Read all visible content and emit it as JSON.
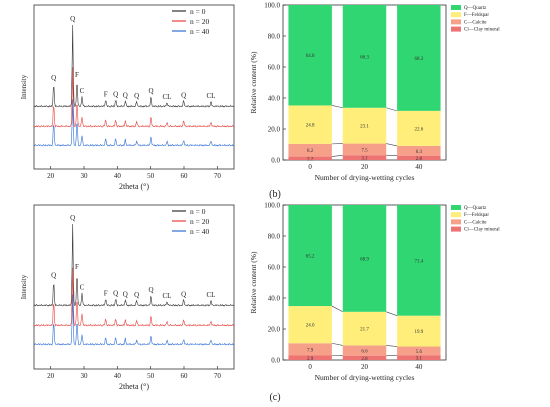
{
  "figure": {
    "panel_labels": [
      "(b)",
      "(c)"
    ]
  },
  "chart_data": [
    {
      "type": "line",
      "id": "xrd-top",
      "xlabel": "2theta (°)",
      "ylabel": "Intensity",
      "xlim": [
        15,
        75
      ],
      "xticks": [
        20,
        30,
        40,
        50,
        60,
        70
      ],
      "legend_position": "top-right",
      "series": [
        {
          "name": "n = 0",
          "color": "#333333",
          "peaks": [
            [
              20.9,
              0.28
            ],
            [
              26.6,
              1.0
            ],
            [
              27.9,
              0.32
            ],
            [
              29.4,
              0.12
            ],
            [
              36.5,
              0.08
            ],
            [
              39.5,
              0.08
            ],
            [
              42.4,
              0.07
            ],
            [
              45.8,
              0.06
            ],
            [
              50.1,
              0.12
            ],
            [
              54.9,
              0.05
            ],
            [
              59.9,
              0.07
            ],
            [
              68.1,
              0.06
            ]
          ]
        },
        {
          "name": "n = 20",
          "color": "#e8403c",
          "peaks": [
            [
              20.9,
              0.28
            ],
            [
              26.6,
              0.72
            ],
            [
              27.9,
              0.32
            ],
            [
              29.4,
              0.12
            ],
            [
              36.5,
              0.08
            ],
            [
              39.5,
              0.08
            ],
            [
              42.4,
              0.07
            ],
            [
              45.8,
              0.06
            ],
            [
              50.1,
              0.12
            ],
            [
              54.9,
              0.05
            ],
            [
              59.9,
              0.07
            ],
            [
              68.1,
              0.06
            ]
          ]
        },
        {
          "name": "n = 40",
          "color": "#2f6fd6",
          "peaks": [
            [
              20.9,
              0.28
            ],
            [
              26.6,
              0.55
            ],
            [
              27.9,
              0.32
            ],
            [
              29.4,
              0.12
            ],
            [
              36.5,
              0.08
            ],
            [
              39.5,
              0.08
            ],
            [
              42.4,
              0.07
            ],
            [
              45.8,
              0.06
            ],
            [
              50.1,
              0.12
            ],
            [
              54.9,
              0.05
            ],
            [
              59.9,
              0.07
            ],
            [
              68.1,
              0.06
            ]
          ]
        }
      ],
      "annotations": [
        {
          "text": "Q",
          "x": 20.9
        },
        {
          "text": "Q",
          "x": 26.6
        },
        {
          "text": "F",
          "x": 27.9
        },
        {
          "text": "C",
          "x": 29.4
        },
        {
          "text": "F",
          "x": 36.5
        },
        {
          "text": "Q",
          "x": 39.5
        },
        {
          "text": "Q",
          "x": 42.4
        },
        {
          "text": "Q",
          "x": 45.8
        },
        {
          "text": "Q",
          "x": 50.1
        },
        {
          "text": "CL",
          "x": 54.9
        },
        {
          "text": "Q",
          "x": 59.9
        },
        {
          "text": "CL",
          "x": 68.1
        }
      ]
    },
    {
      "type": "bar",
      "id": "comp-top",
      "xlabel": "Number of drying-wetting cycles",
      "ylabel": "Relative content (%)",
      "categories": [
        "0",
        "20",
        "40"
      ],
      "ylim": [
        0,
        100
      ],
      "yticks": [
        0,
        0.2,
        0.4,
        0.6,
        0.8,
        1
      ],
      "ytick_labels": [
        "0.0",
        "20.0",
        "40.0",
        "60.0",
        "80.0",
        "100.0"
      ],
      "stacked": true,
      "legend_position": "top-right",
      "series": [
        {
          "name": "Cl—Clay mineral",
          "color": "#ee7373",
          "values": [
            2.2,
            3.1,
            2.8
          ],
          "labels": [
            "2.2",
            "3.1",
            "2.8"
          ]
        },
        {
          "name": "C—Calcite",
          "color": "#f6a08a",
          "values": [
            8.2,
            7.5,
            6.3
          ],
          "labels": [
            "8.2",
            "7.5",
            "6.3"
          ]
        },
        {
          "name": "F—Feldspar",
          "color": "#ffee7a",
          "values": [
            24.8,
            23.1,
            22.6
          ],
          "labels": [
            "24.8",
            "23.1",
            "22.6"
          ]
        },
        {
          "name": "Q—Quartz",
          "color": "#2fd672",
          "values": [
            64.8,
            66.3,
            68.3
          ],
          "labels": [
            "64.8",
            "66.3",
            "68.3"
          ]
        }
      ]
    },
    {
      "type": "line",
      "id": "xrd-bottom",
      "xlabel": "2theta (°)",
      "ylabel": "Intensity",
      "xlim": [
        15,
        75
      ],
      "xticks": [
        20,
        30,
        40,
        50,
        60,
        70
      ],
      "legend_position": "top-right",
      "series": [
        {
          "name": "n = 0",
          "color": "#333333",
          "peaks": [
            [
              20.9,
              0.3
            ],
            [
              26.6,
              1.0
            ],
            [
              27.9,
              0.4
            ],
            [
              29.4,
              0.15
            ],
            [
              36.5,
              0.08
            ],
            [
              39.5,
              0.08
            ],
            [
              42.4,
              0.07
            ],
            [
              45.8,
              0.06
            ],
            [
              50.1,
              0.12
            ],
            [
              54.9,
              0.05
            ],
            [
              59.9,
              0.07
            ],
            [
              68.1,
              0.06
            ]
          ]
        },
        {
          "name": "n = 20",
          "color": "#e8403c",
          "peaks": [
            [
              20.9,
              0.3
            ],
            [
              26.6,
              0.7
            ],
            [
              27.9,
              0.35
            ],
            [
              29.4,
              0.15
            ],
            [
              36.5,
              0.08
            ],
            [
              39.5,
              0.08
            ],
            [
              42.4,
              0.07
            ],
            [
              45.8,
              0.06
            ],
            [
              50.1,
              0.12
            ],
            [
              54.9,
              0.05
            ],
            [
              59.9,
              0.07
            ],
            [
              68.1,
              0.06
            ]
          ]
        },
        {
          "name": "n = 40",
          "color": "#2f6fd6",
          "peaks": [
            [
              20.9,
              0.28
            ],
            [
              26.6,
              0.6
            ],
            [
              27.9,
              0.3
            ],
            [
              29.4,
              0.12
            ],
            [
              36.5,
              0.08
            ],
            [
              39.5,
              0.08
            ],
            [
              42.4,
              0.07
            ],
            [
              45.8,
              0.06
            ],
            [
              50.1,
              0.12
            ],
            [
              54.9,
              0.05
            ],
            [
              59.9,
              0.07
            ],
            [
              68.1,
              0.06
            ]
          ]
        }
      ],
      "annotations": [
        {
          "text": "Q",
          "x": 20.9
        },
        {
          "text": "Q",
          "x": 26.6
        },
        {
          "text": "F",
          "x": 27.9
        },
        {
          "text": "C",
          "x": 29.4
        },
        {
          "text": "F",
          "x": 36.5
        },
        {
          "text": "Q",
          "x": 39.5
        },
        {
          "text": "Q",
          "x": 42.4
        },
        {
          "text": "Q",
          "x": 45.8
        },
        {
          "text": "Q",
          "x": 50.1
        },
        {
          "text": "CL",
          "x": 54.9
        },
        {
          "text": "Q",
          "x": 59.9
        },
        {
          "text": "CL",
          "x": 68.1
        }
      ]
    },
    {
      "type": "bar",
      "id": "comp-bottom",
      "xlabel": "Number of drying-wetting cycles",
      "ylabel": "Relative content (%)",
      "categories": [
        "0",
        "20",
        "40"
      ],
      "ylim": [
        0,
        100
      ],
      "yticks": [
        0,
        0.2,
        0.4,
        0.6,
        0.8,
        1
      ],
      "ytick_labels": [
        "0.0",
        "20.0",
        "40.0",
        "60.0",
        "80.0",
        "100.0"
      ],
      "stacked": true,
      "legend_position": "top-right",
      "series": [
        {
          "name": "Cl—Clay mineral",
          "color": "#ee7373",
          "values": [
            2.9,
            2.8,
            3.1
          ],
          "labels": [
            "2.9",
            "2.8",
            "3.1"
          ]
        },
        {
          "name": "C—Calcite",
          "color": "#f6a08a",
          "values": [
            7.9,
            6.6,
            5.6
          ],
          "labels": [
            "7.9",
            "6.6",
            "5.6"
          ]
        },
        {
          "name": "F—Feldspar",
          "color": "#ffee7a",
          "values": [
            24.0,
            21.7,
            19.9
          ],
          "labels": [
            "24.0",
            "21.7",
            "19.9"
          ]
        },
        {
          "name": "Q—Quartz",
          "color": "#2fd672",
          "values": [
            65.2,
            68.9,
            71.4
          ],
          "labels": [
            "65.2",
            "68.9",
            "71.4"
          ]
        }
      ]
    }
  ]
}
